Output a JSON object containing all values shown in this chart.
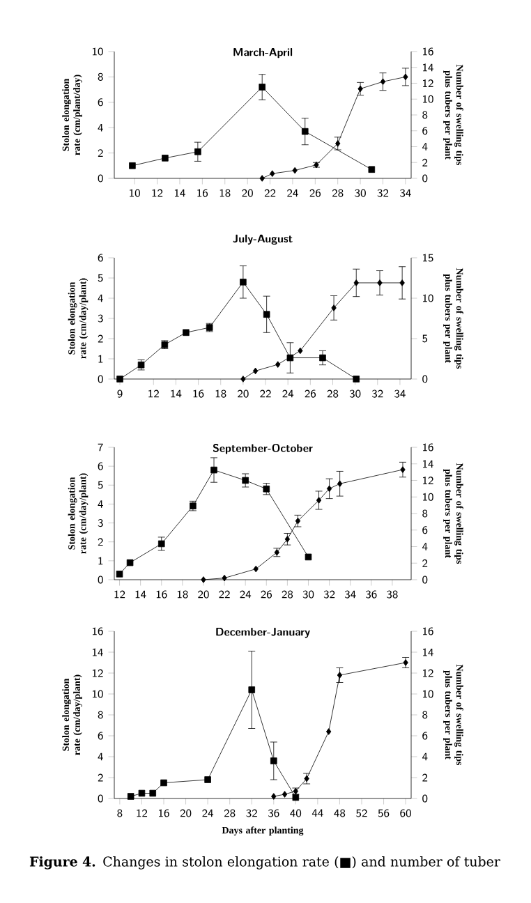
{
  "chart_data": [
    {
      "type": "line",
      "title": "March-April",
      "ylabel": "Stolon elongation rate (cm/plant/day)",
      "y2label": "Number of swelling tips plus tubers per plant",
      "xlim": [
        8.2,
        34.5
      ],
      "xticks": [
        10,
        12,
        14,
        16,
        18,
        20,
        22,
        24,
        26,
        28,
        30,
        32,
        34
      ],
      "ylim": [
        0,
        10
      ],
      "yticks": [
        0,
        2,
        4,
        6,
        8,
        10
      ],
      "y2lim": [
        0,
        16
      ],
      "y2ticks": [
        0,
        2,
        4,
        6,
        8,
        10,
        12,
        14,
        16
      ],
      "series": [
        {
          "color": "#000000",
          "marker": "square",
          "x": [
            9.8,
            12.7,
            15.6,
            21.3,
            25.1,
            31
          ],
          "values": [
            1.0,
            1.6,
            2.1,
            7.2,
            3.7,
            0.7
          ],
          "errors": [
            null,
            null,
            0.75,
            1.0,
            1.05,
            null
          ]
        },
        {
          "color": "#000000",
          "marker": "diamond",
          "axis": "y2",
          "x": [
            21.3,
            22.2,
            24.2,
            26.1,
            28,
            30,
            32,
            34
          ],
          "values": [
            0,
            0.6,
            1.0,
            1.7,
            4.4,
            11.3,
            12.2,
            12.8
          ],
          "errors": [
            null,
            null,
            null,
            0.3,
            0.8,
            0.8,
            1.1,
            1.1
          ]
        }
      ]
    },
    {
      "type": "line",
      "title": "July-August",
      "ylabel": "Stolon elongation rate (cm/day/plant)",
      "y2label": "Number of swelling tips plus tubers per plant",
      "xlim": [
        8.5,
        35
      ],
      "xticks": [
        9,
        12,
        14,
        16,
        18,
        20,
        22,
        24,
        26,
        28,
        30,
        32,
        34
      ],
      "ylim": [
        0,
        6
      ],
      "yticks": [
        0,
        1,
        2,
        3,
        4,
        5,
        6
      ],
      "y2lim": [
        0,
        15
      ],
      "y2ticks": [
        0,
        5,
        10,
        15
      ],
      "series": [
        {
          "color": "#000000",
          "marker": "square",
          "x": [
            9,
            10.9,
            13,
            14.9,
            17,
            20,
            22.1,
            24.2,
            27.1,
            30.1
          ],
          "values": [
            0,
            0.7,
            1.7,
            2.3,
            2.55,
            4.8,
            3.2,
            1.05,
            1.05,
            0
          ],
          "errors": [
            null,
            0.25,
            0.2,
            null,
            0.2,
            0.8,
            0.9,
            0.75,
            0.35,
            null
          ]
        },
        {
          "color": "#000000",
          "marker": "diamond",
          "axis": "y2",
          "x": [
            20,
            21.1,
            23.1,
            25.1,
            28.1,
            30.1,
            32.2,
            34.2
          ],
          "values": [
            0,
            1.0,
            1.8,
            3.5,
            8.8,
            11.9,
            11.9,
            11.9
          ],
          "errors": [
            null,
            null,
            null,
            null,
            1.5,
            1.7,
            1.5,
            2.0
          ]
        }
      ]
    },
    {
      "type": "line",
      "title": "September-October",
      "ylabel": "Stolon elongation rate (cm/day/plant)",
      "y2label": "Number of swelling tips plus tubers per plant",
      "xlim": [
        11.5,
        39.8
      ],
      "xticks": [
        12,
        14,
        16,
        18,
        20,
        22,
        24,
        26,
        28,
        30,
        32,
        34,
        36,
        38
      ],
      "ylim": [
        0,
        7
      ],
      "yticks": [
        0,
        1,
        2,
        3,
        4,
        5,
        6,
        7
      ],
      "y2lim": [
        0,
        16
      ],
      "y2ticks": [
        0,
        2,
        4,
        6,
        8,
        10,
        12,
        14,
        16
      ],
      "series": [
        {
          "color": "#000000",
          "marker": "square",
          "x": [
            12,
            13,
            16,
            19,
            21,
            24,
            26,
            30
          ],
          "values": [
            0.3,
            0.9,
            1.9,
            3.9,
            5.8,
            5.25,
            4.8,
            1.2
          ],
          "errors": [
            null,
            null,
            0.35,
            0.25,
            0.65,
            0.35,
            0.3,
            null
          ]
        },
        {
          "color": "#000000",
          "marker": "diamond",
          "axis": "y2",
          "x": [
            20,
            22,
            25,
            27,
            28,
            29,
            31,
            32,
            33,
            39
          ],
          "values": [
            0,
            0.2,
            1.3,
            3.3,
            4.9,
            7.1,
            9.6,
            11,
            11.6,
            13.3
          ],
          "errors": [
            null,
            null,
            null,
            0.5,
            0.7,
            0.7,
            1.1,
            1.2,
            1.5,
            0.9
          ]
        }
      ]
    },
    {
      "type": "line",
      "title": "December-January",
      "xlabel": "Days after planting",
      "ylabel": "Stolon elongation rate (cm/day/plant)",
      "y2label": "Number of swelling tips plus tubers per plant",
      "xlim": [
        7,
        61
      ],
      "xticks": [
        8,
        12,
        16,
        20,
        24,
        28,
        32,
        36,
        40,
        44,
        48,
        52,
        56,
        60
      ],
      "ylim": [
        0,
        16
      ],
      "yticks": [
        0,
        2,
        4,
        6,
        8,
        10,
        12,
        14,
        16
      ],
      "y2lim": [
        0,
        16
      ],
      "y2ticks": [
        0,
        2,
        4,
        6,
        8,
        10,
        12,
        14,
        16
      ],
      "annotations": [
        "**Figure 4.** Changes in stolon elongation rate (■) and number of tuber"
      ],
      "series": [
        {
          "color": "#000000",
          "marker": "square",
          "x": [
            10,
            12,
            14,
            16,
            24,
            32,
            36,
            40
          ],
          "values": [
            0.2,
            0.5,
            0.5,
            1.5,
            1.8,
            10.4,
            3.6,
            0.1
          ],
          "errors": [
            null,
            null,
            null,
            null,
            null,
            3.7,
            1.8,
            null
          ]
        },
        {
          "color": "#000000",
          "marker": "diamond",
          "axis": "y2",
          "x": [
            36,
            38,
            40,
            42,
            46,
            48,
            60
          ],
          "values": [
            0.2,
            0.4,
            0.7,
            1.9,
            6.4,
            11.8,
            13.0
          ],
          "errors": [
            null,
            null,
            0.3,
            0.5,
            null,
            0.7,
            0.5
          ]
        }
      ]
    }
  ]
}
